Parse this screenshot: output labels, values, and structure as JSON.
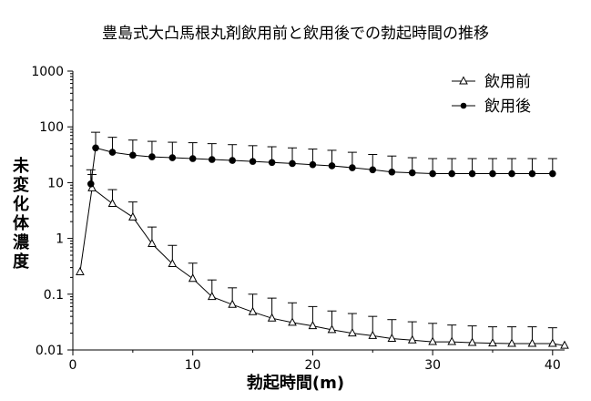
{
  "chart_data": {
    "type": "line",
    "title": "豊島式大凸馬根丸剤飲用前と飲用後での勃起時間の推移",
    "xlabel": "勃起時間(m)",
    "ylabel": "未変化体濃度",
    "xlim": [
      0,
      41
    ],
    "ylim": [
      0.01,
      1000
    ],
    "yscale": "log",
    "xticks": [
      "0",
      "10",
      "20",
      "30",
      "40"
    ],
    "yticks": [
      "1000",
      "100",
      "10",
      "1",
      "0.1",
      "0.01"
    ],
    "legend_position": "top-right",
    "series": [
      {
        "name": "飲用前",
        "marker": "triangle-open",
        "x": [
          0.6,
          1.6,
          3.3,
          5,
          6.6,
          8.3,
          10,
          11.6,
          13.3,
          15,
          16.6,
          18.3,
          20,
          21.6,
          23.3,
          25,
          26.6,
          28.3,
          30,
          31.6,
          33.3,
          35,
          36.6,
          38.3,
          40,
          41
        ],
        "values": [
          0.25,
          8,
          4.2,
          2.4,
          0.8,
          0.35,
          0.19,
          0.09,
          0.065,
          0.048,
          0.037,
          0.031,
          0.027,
          0.023,
          0.02,
          0.018,
          0.016,
          0.015,
          0.014,
          0.014,
          0.0135,
          0.0132,
          0.013,
          0.013,
          0.013,
          0.012
        ],
        "error_upper": [
          null,
          14,
          7.5,
          4.5,
          1.6,
          0.75,
          0.36,
          0.18,
          0.13,
          0.1,
          0.085,
          0.07,
          0.06,
          0.05,
          0.045,
          0.04,
          0.035,
          0.032,
          0.03,
          0.028,
          0.027,
          0.026,
          0.026,
          0.026,
          0.025,
          null
        ]
      },
      {
        "name": "飲用後",
        "marker": "circle-filled",
        "x": [
          1.5,
          1.9,
          3.3,
          5,
          6.6,
          8.3,
          10,
          11.6,
          13.3,
          15,
          16.6,
          18.3,
          20,
          21.6,
          23.3,
          25,
          26.6,
          28.3,
          30,
          31.6,
          33.3,
          35,
          36.6,
          38.3,
          40
        ],
        "values": [
          9.5,
          42,
          35,
          31,
          29,
          28,
          27,
          26,
          25,
          24,
          23,
          22,
          21,
          20,
          18.5,
          17,
          15.5,
          15,
          14.5,
          14.5,
          14.5,
          14.5,
          14.5,
          14.5,
          14.5
        ],
        "error_upper": [
          17,
          80,
          65,
          58,
          55,
          53,
          52,
          50,
          48,
          46,
          44,
          42,
          40,
          38,
          35,
          32,
          30,
          28,
          27,
          27,
          27,
          27,
          27,
          27,
          27
        ]
      }
    ]
  }
}
